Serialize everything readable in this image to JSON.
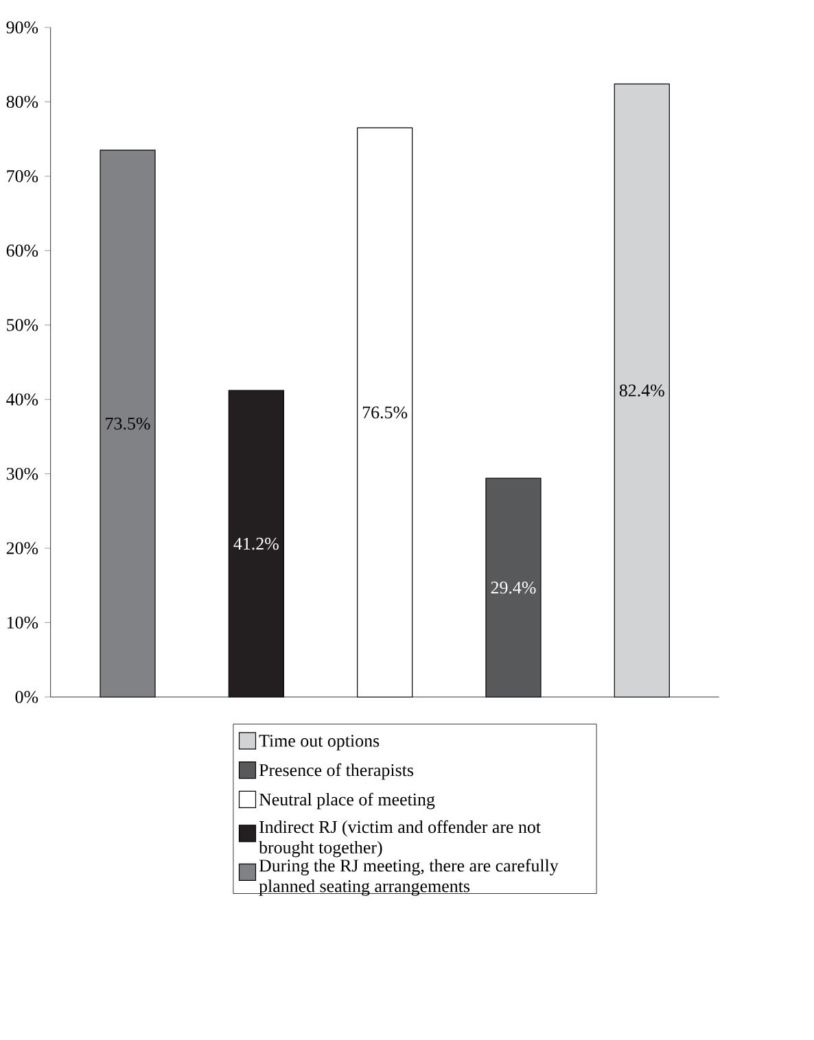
{
  "chart_data": {
    "type": "bar",
    "categories": [
      null,
      null,
      null,
      null,
      null
    ],
    "series": [
      {
        "name": "During the RJ meeting, there are carefully planned seating arrangements",
        "color": "#808285",
        "values": [
          73.5,
          null,
          null,
          null,
          null
        ],
        "value_labels": [
          "73.5%",
          null,
          null,
          null,
          null
        ]
      },
      {
        "name": "Indirect RJ (victim and offender are not brought together)",
        "color": "#231f20",
        "values": [
          null,
          41.2,
          null,
          null,
          null
        ],
        "value_labels": [
          null,
          "41.2%",
          null,
          null,
          null
        ]
      },
      {
        "name": "Neutral place of meeting",
        "color": "#ffffff",
        "values": [
          null,
          null,
          76.5,
          null,
          null
        ],
        "value_labels": [
          null,
          null,
          "76.5%",
          null,
          null
        ]
      },
      {
        "name": "Presence of therapists",
        "color": "#58595b",
        "values": [
          null,
          null,
          null,
          29.4,
          null
        ],
        "value_labels": [
          null,
          null,
          null,
          "29.4%",
          null
        ]
      },
      {
        "name": "Time out options",
        "color": "#d1d3d4",
        "values": [
          null,
          null,
          null,
          null,
          82.4
        ],
        "value_labels": [
          null,
          null,
          null,
          null,
          "82.4%"
        ]
      }
    ],
    "ylim": [
      0,
      90
    ],
    "yticks": [
      {
        "value": 0,
        "label": "0%"
      },
      {
        "value": 10,
        "label": "10%"
      },
      {
        "value": 20,
        "label": "20%"
      },
      {
        "value": 30,
        "label": "30%"
      },
      {
        "value": 40,
        "label": "40%"
      },
      {
        "value": 50,
        "label": "50%"
      },
      {
        "value": 60,
        "label": "60%"
      },
      {
        "value": 70,
        "label": "70%"
      },
      {
        "value": 80,
        "label": "80%"
      },
      {
        "value": 90,
        "label": "90%"
      }
    ],
    "tick_labels": "y",
    "grid": false,
    "legend": "bottom"
  }
}
